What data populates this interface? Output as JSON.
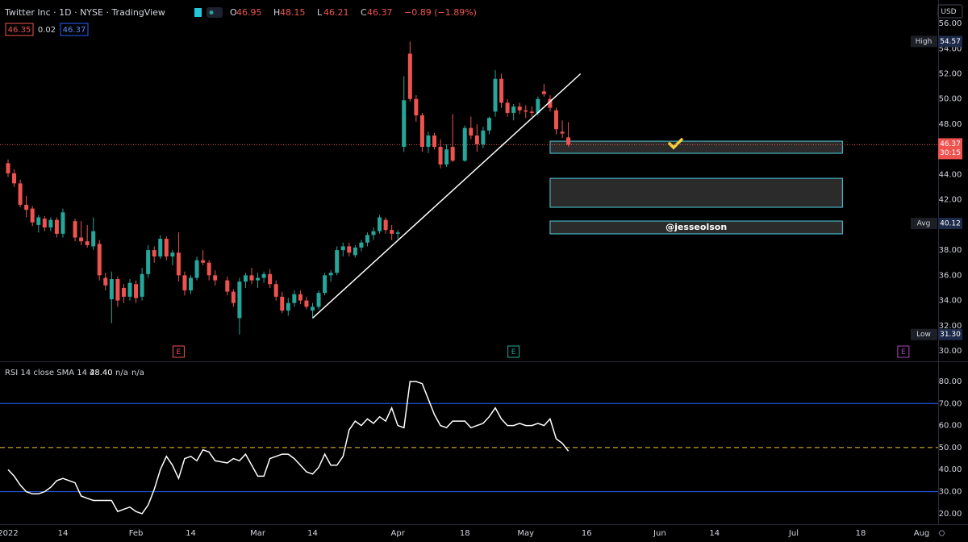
{
  "header": {
    "title": "Twitter Inc · 1D · NYSE · TradingView",
    "ohlc_labels": [
      "O",
      "H",
      "L",
      "C"
    ],
    "change": "−0.89 (−1.89%)",
    "bid": "46.35",
    "spread": "0.02",
    "ask": "46.37",
    "currency": "USD",
    "watermark": "@jesseolson"
  },
  "chart_data": [
    {
      "type": "candlestick",
      "x": [
        "2022-01-03",
        "2022-01-04",
        "2022-01-05",
        "2022-01-06",
        "2022-01-07",
        "2022-01-10",
        "2022-01-11",
        "2022-01-12",
        "2022-01-13",
        "2022-01-14",
        "2022-01-18",
        "2022-01-19",
        "2022-01-20",
        "2022-01-21",
        "2022-01-24",
        "2022-01-25",
        "2022-01-26",
        "2022-01-27",
        "2022-01-28",
        "2022-01-31",
        "2022-02-01",
        "2022-02-02",
        "2022-02-03",
        "2022-02-04",
        "2022-02-07",
        "2022-02-08",
        "2022-02-09",
        "2022-02-10",
        "2022-02-11",
        "2022-02-14",
        "2022-02-15",
        "2022-02-16",
        "2022-02-17",
        "2022-02-18",
        "2022-02-22",
        "2022-02-23",
        "2022-02-24",
        "2022-02-25",
        "2022-02-28",
        "2022-03-01",
        "2022-03-02",
        "2022-03-03",
        "2022-03-04",
        "2022-03-07",
        "2022-03-08",
        "2022-03-09",
        "2022-03-10",
        "2022-03-11",
        "2022-03-14",
        "2022-03-15",
        "2022-03-16",
        "2022-03-17",
        "2022-03-18",
        "2022-03-21",
        "2022-03-22",
        "2022-03-23",
        "2022-03-24",
        "2022-03-25",
        "2022-03-28",
        "2022-03-29",
        "2022-03-30",
        "2022-03-31",
        "2022-04-01",
        "2022-04-04",
        "2022-04-05",
        "2022-04-06",
        "2022-04-07",
        "2022-04-08",
        "2022-04-11",
        "2022-04-12",
        "2022-04-13",
        "2022-04-14",
        "2022-04-18",
        "2022-04-19",
        "2022-04-20",
        "2022-04-21",
        "2022-04-22",
        "2022-04-25",
        "2022-04-26",
        "2022-04-27",
        "2022-04-28",
        "2022-04-29",
        "2022-05-02",
        "2022-05-03",
        "2022-05-04",
        "2022-05-05",
        "2022-05-06",
        "2022-05-09",
        "2022-05-10",
        "2022-05-11"
      ],
      "open": [
        44.9,
        44.1,
        43.3,
        41.6,
        41.3,
        40.0,
        40.5,
        39.8,
        40.4,
        39.3,
        40.3,
        39.0,
        38.7,
        38.3,
        38.5,
        35.8,
        34.1,
        35.7,
        35.0,
        34.3,
        35.3,
        34.3,
        36.1,
        38.0,
        37.5,
        38.9,
        37.5,
        37.8,
        36.0,
        34.8,
        35.8,
        37.2,
        37.0,
        36.0,
        35.6,
        34.7,
        32.6,
        35.5,
        36.0,
        35.6,
        35.8,
        36.1,
        35.3,
        34.3,
        33.2,
        33.8,
        34.5,
        34.0,
        33.2,
        33.5,
        34.6,
        36.0,
        36.2,
        38.0,
        38.3,
        37.6,
        38.2,
        38.6,
        39.2,
        39.5,
        40.4,
        39.6,
        39.3,
        46.2,
        53.6,
        50.0,
        48.7,
        46.2,
        47.1,
        46.2,
        44.8,
        46.2,
        45.1,
        47.7,
        47.1,
        46.4,
        47.5,
        49.0,
        51.6,
        49.7,
        48.9,
        49.4,
        49.1,
        49.0,
        48.9,
        50.6,
        50.0,
        49.1,
        47.4,
        46.95
      ],
      "high": [
        45.2,
        44.4,
        43.6,
        42.3,
        41.5,
        40.8,
        40.7,
        40.6,
        40.6,
        41.3,
        40.5,
        40.3,
        40.0,
        40.6,
        38.8,
        36.2,
        36.3,
        35.9,
        35.3,
        35.7,
        35.6,
        36.6,
        38.4,
        38.3,
        39.2,
        39.1,
        38.0,
        39.4,
        36.3,
        36.0,
        37.5,
        38.0,
        37.2,
        36.4,
        35.9,
        34.9,
        35.8,
        36.2,
        36.6,
        36.2,
        36.3,
        36.5,
        35.6,
        34.7,
        34.2,
        34.8,
        34.8,
        34.3,
        33.8,
        34.8,
        36.2,
        36.4,
        38.3,
        38.6,
        38.6,
        38.4,
        38.8,
        39.4,
        39.8,
        40.8,
        40.6,
        40.0,
        39.6,
        51.8,
        54.57,
        50.3,
        48.9,
        47.4,
        47.3,
        46.8,
        46.4,
        48.8,
        47.9,
        48.6,
        48.0,
        47.8,
        48.6,
        52.3,
        52.0,
        50.0,
        49.6,
        49.7,
        49.5,
        49.4,
        50.2,
        51.2,
        50.3,
        49.3,
        48.3,
        48.15
      ],
      "low": [
        43.8,
        43.0,
        41.4,
        40.6,
        39.9,
        39.4,
        39.5,
        39.5,
        39.0,
        39.0,
        38.7,
        38.4,
        38.2,
        38.0,
        35.6,
        34.8,
        32.2,
        33.5,
        33.8,
        34.0,
        33.8,
        34.0,
        35.8,
        37.0,
        37.3,
        37.2,
        36.8,
        35.5,
        34.4,
        34.5,
        35.6,
        36.8,
        35.6,
        35.2,
        34.4,
        33.5,
        31.3,
        35.0,
        35.3,
        35.0,
        35.4,
        35.0,
        34.0,
        33.0,
        32.8,
        33.5,
        33.7,
        33.3,
        32.6,
        33.3,
        34.4,
        35.5,
        36.0,
        37.5,
        37.5,
        37.4,
        37.9,
        38.3,
        38.8,
        39.3,
        39.3,
        38.8,
        38.9,
        45.8,
        49.8,
        48.2,
        45.8,
        45.7,
        46.0,
        44.5,
        44.6,
        45.0,
        45.0,
        46.8,
        45.8,
        46.1,
        47.2,
        48.6,
        49.3,
        48.6,
        48.3,
        48.8,
        48.5,
        48.6,
        48.7,
        50.2,
        49.0,
        47.2,
        46.9,
        46.21
      ],
      "close": [
        44.1,
        43.3,
        41.6,
        41.2,
        40.2,
        40.6,
        39.8,
        40.4,
        39.3,
        41.0,
        39.0,
        38.7,
        38.4,
        39.5,
        36.0,
        35.2,
        35.7,
        34.0,
        34.3,
        35.4,
        34.2,
        36.1,
        38.0,
        37.5,
        38.9,
        37.5,
        37.8,
        36.0,
        34.8,
        35.8,
        37.2,
        37.0,
        36.0,
        35.6,
        34.7,
        33.8,
        35.5,
        36.0,
        35.6,
        35.8,
        36.1,
        35.3,
        34.3,
        33.2,
        33.8,
        34.5,
        34.0,
        33.5,
        33.5,
        34.6,
        36.0,
        36.2,
        38.0,
        38.3,
        37.8,
        38.2,
        38.6,
        39.2,
        39.5,
        40.6,
        39.6,
        39.3,
        39.4,
        49.9,
        50.0,
        48.7,
        46.2,
        47.1,
        46.2,
        44.8,
        46.0,
        45.1,
        47.7,
        47.1,
        46.4,
        47.5,
        48.5,
        51.6,
        49.7,
        48.9,
        49.4,
        49.1,
        49.0,
        48.9,
        50.0,
        50.4,
        49.3,
        47.6,
        47.26,
        46.37
      ],
      "up_color": "#26a69a",
      "down_color": "#ef5350",
      "ylim": [
        29.17,
        57.86
      ],
      "yticks": [
        {
          "value": 30,
          "label": "30.00"
        },
        {
          "value": 32,
          "label": "32.00"
        },
        {
          "value": 34,
          "label": "34.00"
        },
        {
          "value": 36,
          "label": "36.00"
        },
        {
          "value": 38,
          "label": "38.00"
        },
        {
          "value": 40,
          "label": "40.00"
        },
        {
          "value": 42,
          "label": "42.00"
        },
        {
          "value": 44,
          "label": "44.00"
        },
        {
          "value": 46,
          "label": "46.00"
        },
        {
          "value": 48,
          "label": "48.00"
        },
        {
          "value": 50,
          "label": "50.00"
        },
        {
          "value": 52,
          "label": "52.00"
        },
        {
          "value": 54,
          "label": "54.00"
        },
        {
          "value": 56,
          "label": "56.00"
        }
      ],
      "xticks": [
        {
          "value": "2022-01-03",
          "label": "2022"
        },
        {
          "value": "2022-01-14",
          "label": "14"
        },
        {
          "value": "2022-02-01",
          "label": "Feb"
        },
        {
          "value": "2022-02-14",
          "label": "14"
        },
        {
          "value": "2022-03-01",
          "label": "Mar"
        },
        {
          "value": "2022-03-14",
          "label": "14"
        },
        {
          "value": "2022-04-01",
          "label": "Apr"
        },
        {
          "value": "2022-04-18",
          "label": "18"
        },
        {
          "value": "2022-05-02",
          "label": "May"
        },
        {
          "value": "2022-05-16",
          "label": "16"
        },
        {
          "value": "2022-06-01",
          "label": "Jun"
        },
        {
          "value": "2022-06-14",
          "label": "14"
        },
        {
          "value": "2022-07-01",
          "label": "Jul"
        },
        {
          "value": "2022-07-18",
          "label": "18"
        },
        {
          "value": "2022-08-01",
          "label": "Aug"
        }
      ],
      "price_labels": [
        {
          "name": "High",
          "value": 54.57
        },
        {
          "name": "Avg",
          "value": 40.12
        },
        {
          "name": "Low",
          "value": 31.3,
          "value_label": "31.30"
        }
      ],
      "last_price": {
        "value": 46.37,
        "countdown": "30:15",
        "color": "#ef5350"
      },
      "trendline": {
        "from": {
          "x": "2022-03-14",
          "y": 32.6
        },
        "to": {
          "x": "2022-05-13",
          "y": 52.0
        },
        "color": "#ffffff"
      },
      "zones": [
        {
          "from": "2022-05-06",
          "to": "2022-07-13",
          "top": 46.65,
          "bottom": 45.69
        },
        {
          "from": "2022-05-06",
          "to": "2022-07-13",
          "top": 43.7,
          "bottom": 41.4
        },
        {
          "from": "2022-05-06",
          "to": "2022-07-13",
          "top": 40.31,
          "bottom": 39.29
        }
      ],
      "events": [
        {
          "x": "2022-02-10",
          "label": "E",
          "color": "#ef5350"
        },
        {
          "x": "2022-04-28",
          "label": "E",
          "color": "#26a69a"
        },
        {
          "x": "2022-07-27",
          "label": "E",
          "color": "#ab47bc"
        }
      ]
    },
    {
      "type": "line",
      "title": "RSI 14 close SMA 14 2",
      "legend_values": [
        "48.40",
        "n/a",
        "n/a"
      ],
      "series": [
        {
          "name": "RSI",
          "color": "#ffffff",
          "values": [
            40,
            37,
            33,
            30,
            29,
            29,
            30,
            32,
            35,
            36,
            34,
            28,
            27,
            26,
            26,
            26,
            26,
            21,
            22,
            23,
            21,
            20,
            24,
            31,
            40,
            46,
            42,
            36,
            45,
            46,
            44,
            49,
            48,
            44,
            43,
            45,
            44,
            47,
            42,
            37,
            37,
            45,
            46,
            47,
            47,
            45,
            42,
            39,
            38,
            41,
            47,
            42,
            42,
            46,
            58,
            62,
            60,
            63,
            61,
            64,
            62,
            68,
            60,
            59,
            80,
            80,
            79,
            72,
            65,
            60,
            59,
            62,
            62,
            59,
            60,
            61,
            64,
            68,
            63,
            60,
            60,
            61,
            60,
            60,
            61,
            60,
            63,
            54,
            52,
            48.4
          ]
        }
      ],
      "bands": [
        {
          "value": 70,
          "color": "#2962ff"
        },
        {
          "value": 30,
          "color": "#2962ff"
        },
        {
          "value": 50,
          "color": "#f0c930",
          "dashed": true
        }
      ],
      "ylim": [
        15.2,
        88.4
      ],
      "yticks": [
        {
          "value": 20,
          "label": "20.00"
        },
        {
          "value": 30,
          "label": "30.00"
        },
        {
          "value": 40,
          "label": "40.00"
        },
        {
          "value": 50,
          "label": "50.00"
        },
        {
          "value": 60,
          "label": "60.00"
        },
        {
          "value": 70,
          "label": "70.00"
        },
        {
          "value": 80,
          "label": "80.00"
        }
      ]
    }
  ]
}
